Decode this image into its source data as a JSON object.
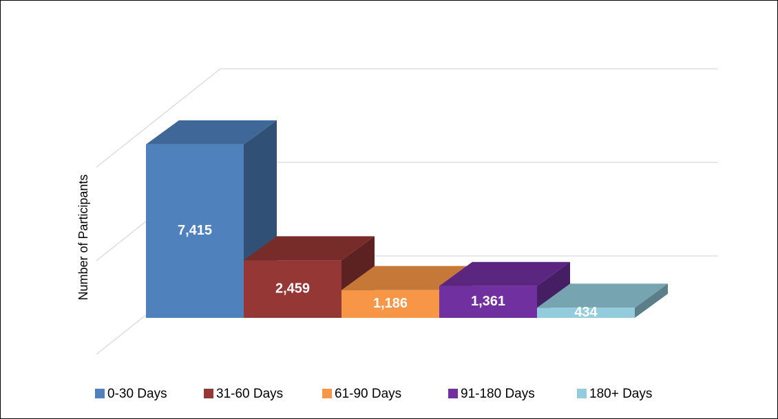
{
  "chart_data": {
    "type": "bar3d",
    "y_label": "Number of Participants",
    "categories": [
      null
    ],
    "series": [
      {
        "name": "0-30 Days",
        "color": "#4f81bd",
        "values": [
          7415
        ],
        "value_labels": [
          "7,415"
        ]
      },
      {
        "name": "31-60 Days",
        "color": "#953735",
        "values": [
          2459
        ],
        "value_labels": [
          "2,459"
        ]
      },
      {
        "name": "61-90 Days",
        "color": "#f79646",
        "values": [
          1186
        ],
        "value_labels": [
          "1,186"
        ]
      },
      {
        "name": "91-180 Days",
        "color": "#7030a0",
        "values": [
          1361
        ],
        "value_labels": [
          "1,361"
        ]
      },
      {
        "name": "180+  Days",
        "color": "#93cddd",
        "values": [
          434
        ],
        "value_labels": [
          "434"
        ]
      }
    ],
    "ylim": [
      0,
      8000
    ],
    "yticks": [
      0,
      4000,
      8000
    ],
    "grid": true,
    "legend": "bottom"
  }
}
